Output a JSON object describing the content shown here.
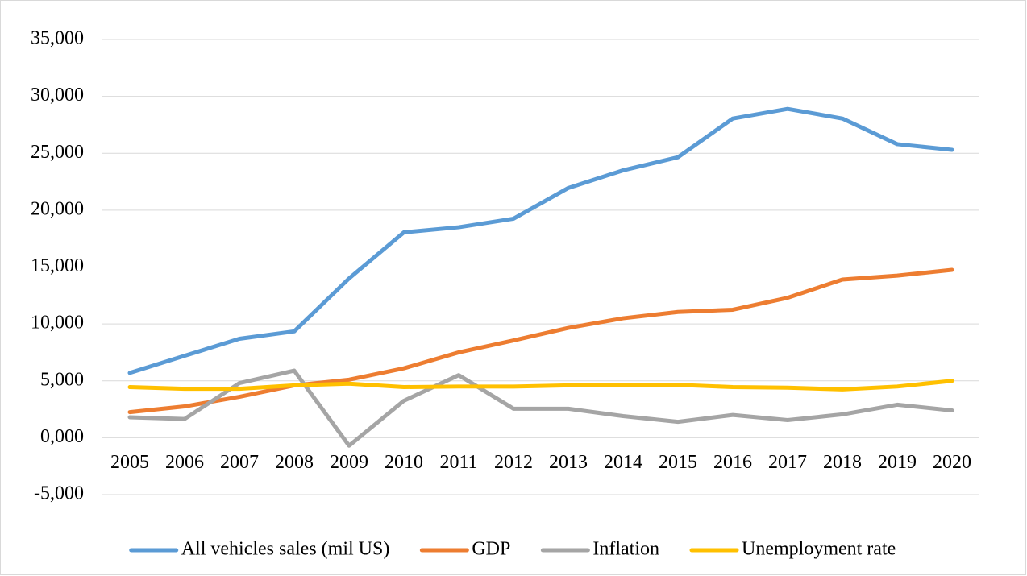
{
  "chart_data": {
    "type": "line",
    "categories": [
      "2005",
      "2006",
      "2007",
      "2008",
      "2009",
      "2010",
      "2011",
      "2012",
      "2013",
      "2014",
      "2015",
      "2016",
      "2017",
      "2018",
      "2019",
      "2020"
    ],
    "series": [
      {
        "name": "All vehicles sales (mil US)",
        "color": "#5b9bd5",
        "values": [
          5700,
          7200,
          8700,
          9350,
          14000,
          18050,
          18500,
          19250,
          21950,
          23500,
          24650,
          28050,
          28900,
          28050,
          25800,
          25300
        ]
      },
      {
        "name": "GDP",
        "color": "#ed7d31",
        "values": [
          2250,
          2750,
          3600,
          4600,
          5100,
          6100,
          7500,
          8550,
          9650,
          10500,
          11050,
          11250,
          12300,
          13900,
          14250,
          14750
        ]
      },
      {
        "name": "Inflation",
        "color": "#a5a5a5",
        "values": [
          1800,
          1650,
          4800,
          5900,
          -700,
          3250,
          5500,
          2550,
          2550,
          1900,
          1400,
          2000,
          1550,
          2050,
          2900,
          2400
        ]
      },
      {
        "name": "Unemployment rate",
        "color": "#ffc000",
        "values": [
          4450,
          4300,
          4300,
          4600,
          4750,
          4450,
          4500,
          4500,
          4600,
          4600,
          4650,
          4450,
          4400,
          4250,
          4500,
          5000
        ]
      }
    ],
    "ylim": [
      -5000,
      35000
    ],
    "yticks": [
      {
        "value": -5000,
        "label": "-5,000"
      },
      {
        "value": 0,
        "label": "0,000"
      },
      {
        "value": 5000,
        "label": "5,000"
      },
      {
        "value": 10000,
        "label": "10,000"
      },
      {
        "value": 15000,
        "label": "15,000"
      },
      {
        "value": 20000,
        "label": "20,000"
      },
      {
        "value": 25000,
        "label": "25,000"
      },
      {
        "value": 30000,
        "label": "30,000"
      },
      {
        "value": 35000,
        "label": "35,000"
      }
    ],
    "grid": true,
    "legend": "bottom"
  }
}
